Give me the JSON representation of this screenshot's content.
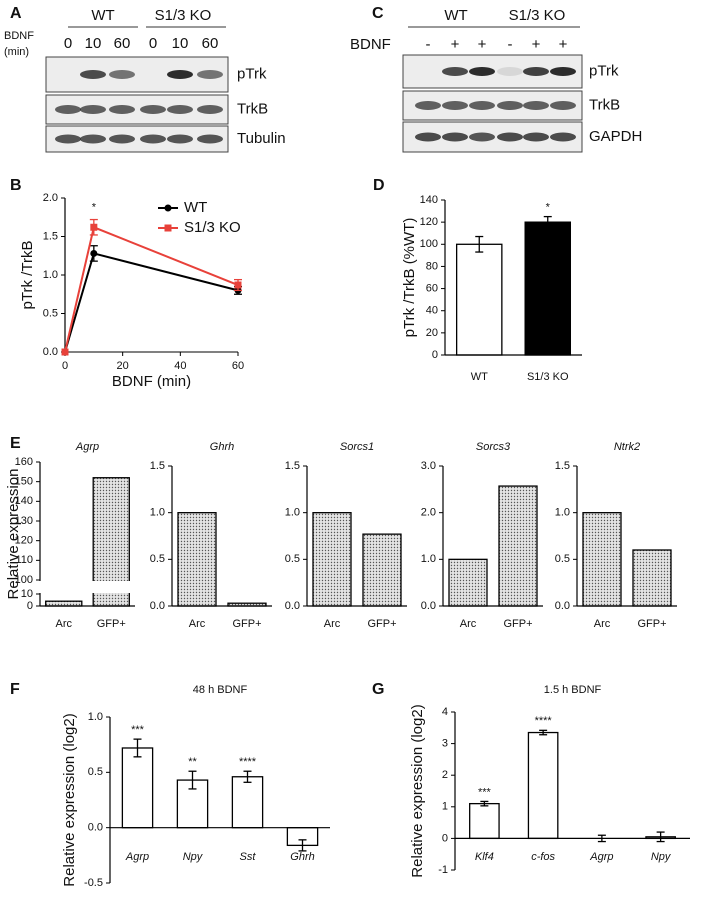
{
  "blots": [
    {
      "panel": "A",
      "groups": [
        "WT",
        "S1/3 KO"
      ],
      "treatment": [
        "BDNF",
        "(min)"
      ],
      "lanes": [
        "0",
        "10",
        "60",
        "0",
        "10",
        "60"
      ],
      "rows": [
        "pTrk",
        "TrkB",
        "Tubulin"
      ]
    },
    {
      "panel": "C",
      "groups": [
        "WT",
        "S1/3 KO"
      ],
      "treatment": [
        "BDNF"
      ],
      "lanes": [
        "-",
        "+",
        "+",
        "-",
        "+",
        "+"
      ],
      "rows": [
        "pTrk",
        "TrkB",
        "GAPDH"
      ]
    }
  ],
  "chart_data": [
    {
      "type": "line",
      "panel": "B",
      "x_label": "BDNF (min)",
      "y_label": "pTrk /TrkB",
      "x": [
        0,
        10,
        60
      ],
      "series": [
        {
          "name": "WT",
          "color": "#000000",
          "values": [
            0,
            1.28,
            0.8
          ],
          "errors": [
            0,
            0.1,
            0.05
          ]
        },
        {
          "name": "S1/3 KO",
          "color": "#e8413a",
          "values": [
            0,
            1.62,
            0.87
          ],
          "errors": [
            0,
            0.1,
            0.07
          ]
        }
      ],
      "annotations": [
        null,
        "*",
        null
      ],
      "legend": "upper right",
      "xlim": [
        0,
        60
      ],
      "xticks": [
        0,
        20,
        40,
        60
      ],
      "ylim": [
        0,
        2
      ],
      "yticks": [
        {
          "value": 0,
          "label": "0.0"
        },
        0.5,
        {
          "value": 1,
          "label": "1.0"
        },
        1.5,
        {
          "value": 2,
          "label": "2.0"
        }
      ]
    },
    {
      "type": "bar",
      "panel": "D",
      "y_label": "pTrk /TrkB (%WT)",
      "categories": [
        "WT",
        "S1/3 KO"
      ],
      "values": [
        100,
        120
      ],
      "errors": [
        7,
        5
      ],
      "colors": [
        "#ffffff",
        "#000000"
      ],
      "annotations": [
        null,
        "*"
      ],
      "ylim": [
        0,
        140
      ],
      "yticks": [
        0,
        20,
        40,
        60,
        80,
        100,
        120,
        140
      ]
    },
    {
      "type": "bar",
      "panel": "E",
      "title": "Agrp",
      "italic": "title",
      "y_label": "Relative expression",
      "categories": [
        "Arc",
        "GFP+"
      ],
      "values": [
        4,
        152
      ],
      "color": "#c8c8c8",
      "pattern": "dots",
      "ylim": [
        0,
        160
      ],
      "ybreak": [
        10,
        100
      ],
      "yticks": [
        0,
        10,
        100,
        110,
        120,
        130,
        140,
        150,
        160
      ]
    },
    {
      "type": "bar",
      "title": "Ghrh",
      "italic": "title",
      "categories": [
        "Arc",
        "GFP+"
      ],
      "values": [
        1.0,
        0.03
      ],
      "color": "#c8c8c8",
      "pattern": "dots",
      "ylim": [
        0,
        1.5
      ],
      "yticks": [
        {
          "value": 0,
          "label": "0.0"
        },
        0.5,
        {
          "value": 1,
          "label": "1.0"
        },
        1.5
      ]
    },
    {
      "type": "bar",
      "title": "Sorcs1",
      "italic": "title",
      "categories": [
        "Arc",
        "GFP+"
      ],
      "values": [
        1.0,
        0.77
      ],
      "color": "#c8c8c8",
      "pattern": "dots",
      "ylim": [
        0,
        1.5
      ],
      "yticks": [
        {
          "value": 0,
          "label": "0.0"
        },
        0.5,
        {
          "value": 1,
          "label": "1.0"
        },
        1.5
      ]
    },
    {
      "type": "bar",
      "title": "Sorcs3",
      "italic": "title",
      "categories": [
        "Arc",
        "GFP+"
      ],
      "values": [
        1.0,
        2.57
      ],
      "color": "#c8c8c8",
      "pattern": "dots",
      "ylim": [
        0,
        3
      ],
      "yticks": [
        {
          "value": 0,
          "label": "0.0"
        },
        {
          "value": 1,
          "label": "1.0"
        },
        {
          "value": 2,
          "label": "2.0"
        },
        {
          "value": 3,
          "label": "3.0"
        }
      ]
    },
    {
      "type": "bar",
      "title": "Ntrk2",
      "italic": "title",
      "categories": [
        "Arc",
        "GFP+"
      ],
      "values": [
        1.0,
        0.6
      ],
      "color": "#c8c8c8",
      "pattern": "dots",
      "ylim": [
        0,
        1.5
      ],
      "yticks": [
        {
          "value": 0,
          "label": "0.0"
        },
        0.5,
        {
          "value": 1,
          "label": "1.0"
        },
        1.5
      ]
    },
    {
      "type": "bar",
      "panel": "F",
      "title": "48 h BDNF",
      "italic": "categories",
      "y_label": "Relative expression (log2)",
      "categories": [
        "Agrp",
        "Npy",
        "Sst",
        "Ghrh"
      ],
      "values": [
        0.72,
        0.43,
        0.46,
        -0.16
      ],
      "errors": [
        0.08,
        0.08,
        0.05,
        0.05
      ],
      "annotations": [
        "***",
        "**",
        "****",
        null
      ],
      "color": "#ffffff",
      "ylim": [
        -0.5,
        1
      ],
      "yticks": [
        -0.5,
        {
          "value": 0,
          "label": "0.0"
        },
        0.5,
        {
          "value": 1,
          "label": "1.0"
        }
      ]
    },
    {
      "type": "bar",
      "panel": "G",
      "title": "1.5 h BDNF",
      "italic": "categories",
      "y_label": "Relative expression (log2)",
      "categories": [
        "Klf4",
        "c-fos",
        "Agrp",
        "Npy"
      ],
      "values": [
        1.1,
        3.35,
        0,
        0.05
      ],
      "errors": [
        0.07,
        0.07,
        0.1,
        0.15
      ],
      "annotations": [
        "***",
        "****",
        null,
        null
      ],
      "color": "#ffffff",
      "ylim": [
        -1,
        4
      ],
      "yticks": [
        -1,
        0,
        1,
        2,
        3,
        4
      ]
    }
  ]
}
